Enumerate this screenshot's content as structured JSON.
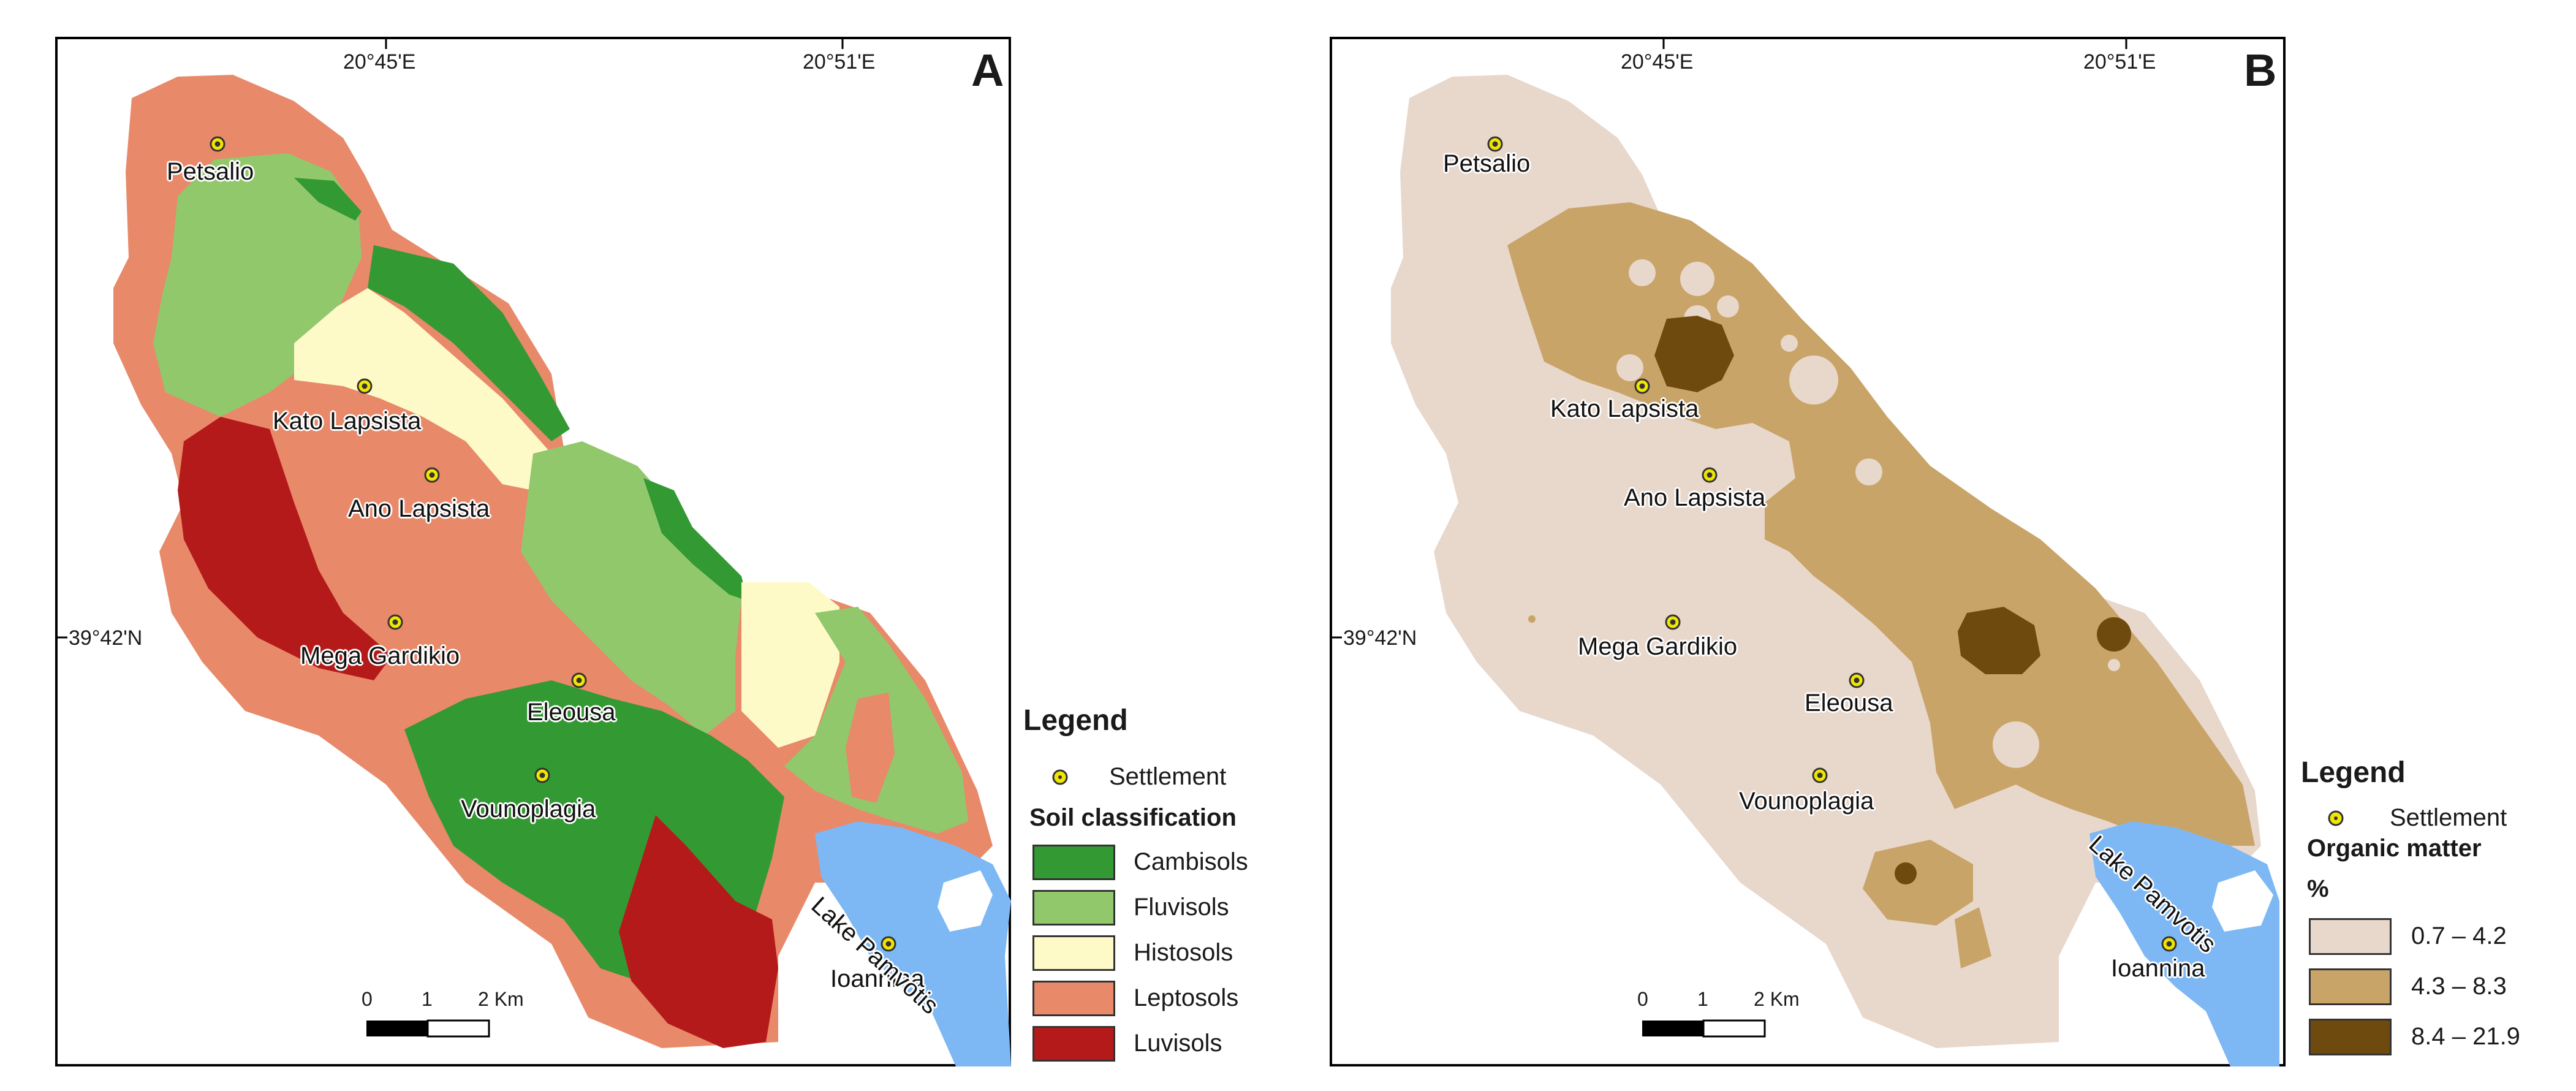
{
  "panel_a": {
    "letter": "A",
    "lon_labels": [
      "20°45'E",
      "20°51'E"
    ],
    "lat_label": "39°42'N",
    "places": [
      "Petsalio",
      "Kato Lapsista",
      "Ano Lapsista",
      "Mega Gardikio",
      "Eleousa",
      "Vounoplagia",
      "Ioannina"
    ],
    "lake_label": "Lake Pamvotis",
    "scale": {
      "labels": [
        "0",
        "1",
        "2 Km"
      ]
    },
    "legend": {
      "title": "Legend",
      "settlement_label": "Settlement",
      "heading": "Soil classification",
      "classes": [
        {
          "label": "Cambisols",
          "color": "#339933"
        },
        {
          "label": "Fluvisols",
          "color": "#92c86c"
        },
        {
          "label": "Histosols",
          "color": "#fdfac8"
        },
        {
          "label": "Leptosols",
          "color": "#e8896a"
        },
        {
          "label": "Luvisols",
          "color": "#b51a1a"
        }
      ]
    }
  },
  "panel_b": {
    "letter": "B",
    "lon_labels": [
      "20°45'E",
      "20°51'E"
    ],
    "lat_label": "39°42'N",
    "places": [
      "Petsalio",
      "Kato Lapsista",
      "Ano Lapsista",
      "Mega Gardikio",
      "Eleousa",
      "Vounoplagia",
      "Ioannina"
    ],
    "lake_label": "Lake Pamvotis",
    "scale": {
      "labels": [
        "0",
        "1",
        "2 Km"
      ]
    },
    "legend": {
      "title": "Legend",
      "settlement_label": "Settlement",
      "heading": "Organic matter",
      "unit": "%",
      "classes": [
        {
          "label": "0.7 – 4.2",
          "color": "#e8d7cb"
        },
        {
          "label": "4.3 – 8.3",
          "color": "#c9a468"
        },
        {
          "label": "8.4 – 21.9",
          "color": "#6e4a0e"
        }
      ]
    }
  },
  "colors": {
    "lake": "#7db8f5",
    "settlement": "#f2e600"
  }
}
